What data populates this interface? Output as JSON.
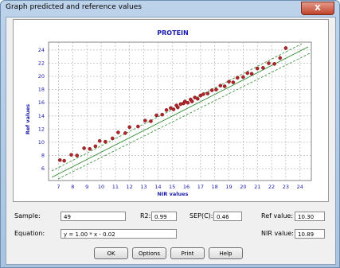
{
  "window": {
    "title": "Graph predicted and reference values",
    "close": "X"
  },
  "chart_data": {
    "type": "scatter",
    "title": "PROTEIN",
    "x_label": "NIR values",
    "y_label": "Ref values",
    "xlim": [
      6.3,
      24.8
    ],
    "ylim": [
      4.2,
      25.2
    ],
    "xticks": [
      7,
      8,
      9,
      10,
      11,
      12,
      13,
      14,
      15,
      16,
      17,
      18,
      19,
      20,
      21,
      22,
      23,
      24
    ],
    "yticks": [
      6,
      8,
      10,
      12,
      14,
      16,
      18,
      20,
      22,
      24
    ],
    "grid": true,
    "color": "#b0242a",
    "x": [
      7.1,
      7.4,
      7.9,
      8.3,
      8.8,
      9.2,
      9.6,
      9.9,
      10.3,
      10.8,
      11.2,
      11.7,
      12.0,
      12.6,
      13.1,
      13.5,
      13.9,
      14.3,
      14.6,
      14.9,
      15.1,
      15.3,
      15.4,
      15.6,
      15.8,
      15.9,
      16.1,
      16.3,
      16.4,
      16.6,
      16.8,
      17.0,
      17.2,
      17.5,
      17.8,
      18.1,
      18.4,
      18.7,
      19.0,
      19.3,
      19.6,
      20.0,
      20.3,
      20.6,
      21.0,
      21.4,
      21.8,
      22.2,
      22.6,
      23.0
    ],
    "values": [
      7.3,
      7.2,
      8.1,
      8.0,
      9.1,
      9.0,
      9.4,
      10.2,
      10.1,
      10.6,
      11.5,
      11.4,
      12.3,
      12.4,
      13.3,
      13.2,
      14.1,
      14.2,
      14.9,
      15.2,
      15.0,
      15.6,
      15.3,
      15.8,
      15.9,
      16.2,
      16.0,
      16.5,
      16.2,
      16.8,
      16.6,
      17.1,
      17.3,
      17.4,
      17.9,
      18.0,
      18.6,
      18.5,
      19.2,
      19.1,
      19.8,
      19.9,
      20.5,
      20.4,
      21.2,
      21.3,
      22.0,
      21.9,
      22.8,
      24.3
    ]
  },
  "fields": {
    "sample_label": "Sample:",
    "sample": "49",
    "r2_label": "R2:",
    "r2": "0.99",
    "sep_label": "SEP(C):",
    "sep": "0.46",
    "ref_label": "Ref value:",
    "ref": "10.30",
    "equation_label": "Equation:",
    "equation": "y = 1.00 * x - 0.02",
    "nir_label": "NIR value:",
    "nir": "10.89"
  },
  "buttons": [
    "OK",
    "Options",
    "Print",
    "Help"
  ]
}
